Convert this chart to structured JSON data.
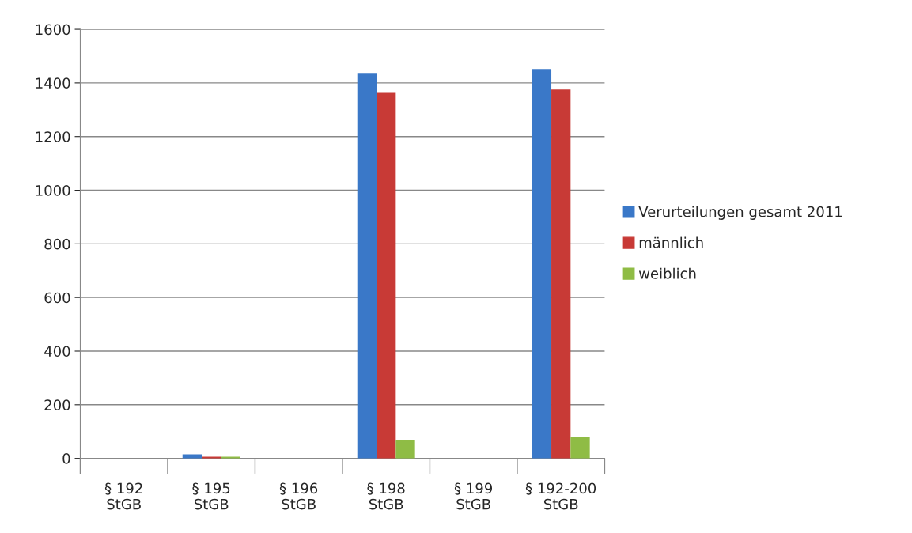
{
  "chart_data": {
    "type": "bar",
    "categories": [
      "§ 192\nStGB",
      "§ 195\nStGB",
      "§ 196\nStGB",
      "§ 198\nStGB",
      "§ 199\nStGB",
      "§ 192-200\nStGB"
    ],
    "series": [
      {
        "name": "Verurteilungen gesamt 2011",
        "color": "#3a78c8",
        "values": [
          0,
          15,
          0,
          1437,
          0,
          1452
        ]
      },
      {
        "name": "männlich",
        "color": "#c83a36",
        "values": [
          0,
          6,
          0,
          1366,
          0,
          1375
        ]
      },
      {
        "name": "weiblich",
        "color": "#8fbc45",
        "values": [
          0,
          6,
          0,
          67,
          0,
          79
        ]
      }
    ],
    "ylim": [
      0,
      1600
    ],
    "yticks": [
      0,
      200,
      400,
      600,
      800,
      1000,
      1200,
      1400,
      1600
    ],
    "grid": "y",
    "legend": "right"
  }
}
